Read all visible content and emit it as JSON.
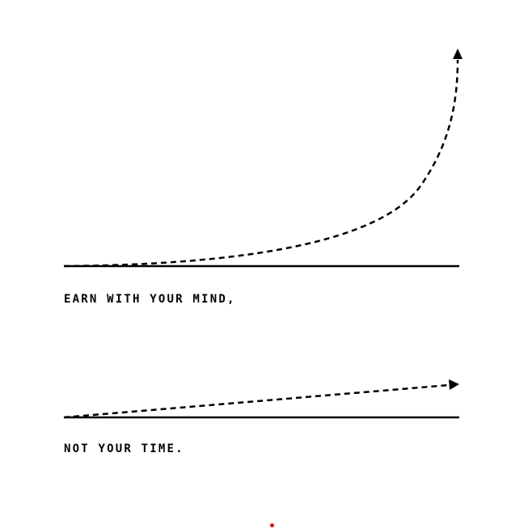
{
  "colors": {
    "background": "#ffffff",
    "ink": "#000000",
    "dot": "#e01010"
  },
  "panels": [
    {
      "caption": "EARN WITH YOUR MIND,",
      "curve": "exponential-dashed-arrow"
    },
    {
      "caption": "NOT YOUR TIME.",
      "curve": "linear-dashed-arrow"
    }
  ]
}
